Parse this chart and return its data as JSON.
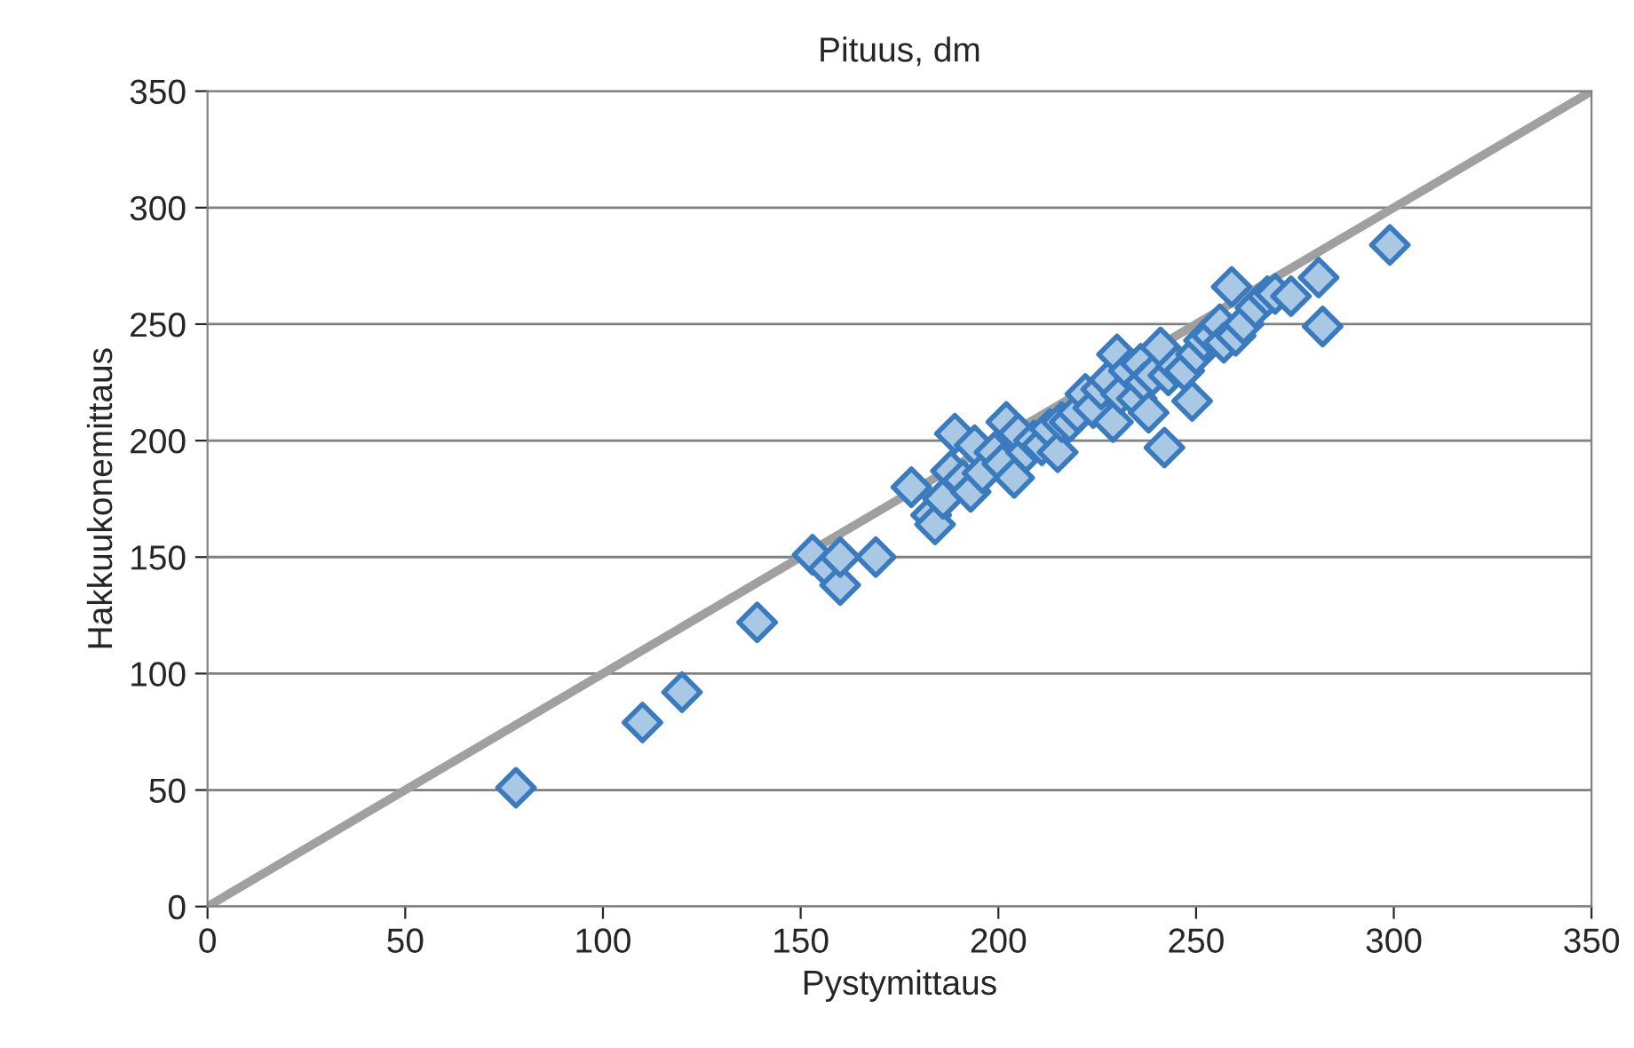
{
  "chart_data": {
    "type": "scatter",
    "title": "Pituus, dm",
    "xlabel": "Pystymittaus",
    "ylabel": "Hakkuukonemittaus",
    "xlim": [
      0,
      350
    ],
    "xticks": [
      0,
      50,
      100,
      150,
      200,
      250,
      300,
      350
    ],
    "ylim": [
      0,
      350
    ],
    "yticks": [
      0,
      50,
      100,
      150,
      200,
      250,
      300,
      350
    ],
    "grid": "y",
    "legend": false,
    "series": [
      {
        "type": "line",
        "color": "#a0a0a0",
        "x": [
          0,
          350
        ],
        "values": [
          0,
          350
        ]
      },
      {
        "marker": "diamond",
        "color": "#a9c8e4",
        "x": [
          78,
          110,
          120,
          139,
          153,
          157,
          160,
          160,
          169,
          178,
          183,
          184,
          186,
          188,
          189,
          191,
          193,
          194,
          196,
          199,
          201,
          202,
          204,
          205,
          207,
          209,
          211,
          213,
          215,
          216,
          218,
          220,
          222,
          224,
          226,
          228,
          229,
          230,
          231,
          233,
          235,
          236,
          237,
          238,
          239,
          241,
          242,
          243,
          245,
          247,
          249,
          250,
          252,
          254,
          256,
          257,
          259,
          260,
          262,
          265,
          268,
          270,
          274,
          281,
          282,
          299
        ],
        "values": [
          51,
          79,
          92,
          122,
          151,
          145,
          138,
          150,
          150,
          180,
          168,
          164,
          175,
          187,
          203,
          183,
          178,
          198,
          186,
          195,
          190,
          208,
          184,
          203,
          195,
          200,
          198,
          205,
          195,
          208,
          208,
          212,
          220,
          214,
          222,
          226,
          208,
          237,
          220,
          230,
          218,
          233,
          225,
          212,
          228,
          240,
          197,
          228,
          232,
          230,
          217,
          237,
          243,
          245,
          250,
          242,
          266,
          245,
          250,
          257,
          262,
          263,
          262,
          270,
          249,
          284
        ]
      }
    ]
  }
}
